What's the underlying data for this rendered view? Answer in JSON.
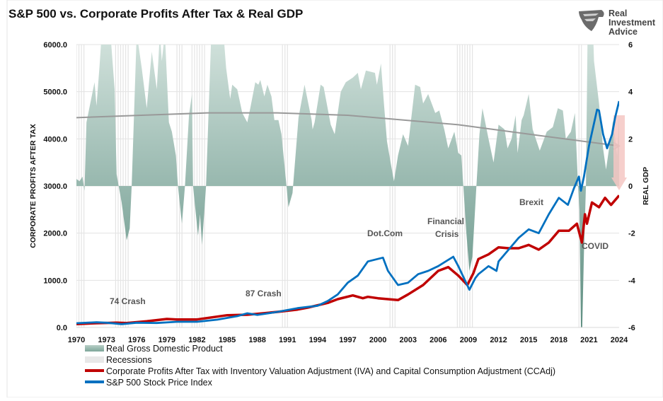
{
  "title": "S&P 500 vs. Corporate Profits After Tax & Real GDP",
  "logo": {
    "lines": [
      "Real",
      "Investment",
      "Advice"
    ]
  },
  "chart_data": {
    "type": "line",
    "title": "S&P 500 vs. Corporate Profits After Tax & Real GDP",
    "xlim": [
      1970,
      2024
    ],
    "x_ticks": [
      "1970",
      "1973",
      "1976",
      "1979",
      "1982",
      "1985",
      "1988",
      "1991",
      "1994",
      "1997",
      "2000",
      "2003",
      "2006",
      "2009",
      "2012",
      "2015",
      "2018",
      "2021",
      "2024"
    ],
    "left_axis": {
      "label": "CORPORATE PROFITS AFTER TAX",
      "ylim": [
        0,
        6000
      ],
      "ticks": [
        "0.0",
        "1000.0",
        "2000.0",
        "3000.0",
        "4000.0",
        "5000.0",
        "6000.0"
      ]
    },
    "right_axis": {
      "label": "REAL GDP",
      "ylim": [
        -6,
        6
      ],
      "ticks": [
        "-6",
        "-4",
        "-2",
        "0",
        "2",
        "4",
        "6"
      ]
    },
    "grid": true,
    "legend_placement": "bottom-left",
    "colors": {
      "gdp_top": "#cfe0da",
      "gdp_bottom": "#5f8f82",
      "recession": "#e4e4e4",
      "profits": "#c00000",
      "sp500": "#0070c0",
      "trend": "#999999",
      "arrow": "#f4c7c3"
    },
    "series": [
      {
        "name": "Real Gross Domestic Product",
        "kind": "area",
        "axis": "right",
        "x": [
          1970,
          1970.3,
          1970.6,
          1970.8,
          1971.0,
          1971.8,
          1972.0,
          1972.3,
          1972.6,
          1973.2,
          1973.8,
          1974.0,
          1974.2,
          1974.5,
          1975.0,
          1975.3,
          1975.5,
          1976.0,
          1976.5,
          1977.0,
          1977.5,
          1978.0,
          1978.3,
          1978.5,
          1978.8,
          1979.2,
          1979.5,
          1979.9,
          1980.1,
          1980.5,
          1980.8,
          1981.2,
          1981.5,
          1981.6,
          1982.1,
          1982.3,
          1982.5,
          1982.9,
          1983.5,
          1984.5,
          1984.9,
          1985.3,
          1985.5,
          1986.0,
          1986.5,
          1987.0,
          1987.3,
          1987.8,
          1988.1,
          1988.3,
          1988.7,
          1989.0,
          1989.4,
          1989.7,
          1990.1,
          1990.4,
          1990.7,
          1990.9,
          1991.1,
          1991.5,
          1992.1,
          1992.7,
          1993.4,
          1993.5,
          1993.7,
          1994.3,
          1994.6,
          1995.3,
          1995.5,
          1995.7,
          1996.3,
          1996.8,
          1997.5,
          1998.0,
          1998.3,
          1998.8,
          1999.7,
          1999.9,
          2000.3,
          2000.6,
          2000.9,
          2001.3,
          2001.6,
          2002.0,
          2002.5,
          2003.0,
          2003.7,
          2004.2,
          2004.5,
          2005.0,
          2005.7,
          2006.1,
          2006.6,
          2007.0,
          2007.6,
          2008.0,
          2008.3,
          2008.5,
          2008.8,
          2009.1,
          2009.4,
          2009.8,
          2010.1,
          2010.4,
          2011.0,
          2011.5,
          2012.0,
          2012.6,
          2012.9,
          2013.3,
          2013.7,
          2013.9,
          2014.3,
          2014.5,
          2015.0,
          2015.4,
          2016.1,
          2016.8,
          2017.4,
          2017.9,
          2018.4,
          2018.7,
          2019.2,
          2019.6,
          2019.9,
          2020.05,
          2020.25,
          2020.5,
          2020.7,
          2021.0,
          2021.5,
          2022.0,
          2022.4,
          2022.7,
          2023.1,
          2023.4,
          2023.8,
          2024.0
        ],
        "values": [
          0.3,
          0.2,
          0.4,
          -0.2,
          2.7,
          4.4,
          3.4,
          5.1,
          7.0,
          7.5,
          4.1,
          0.5,
          0,
          -0.7,
          -2.3,
          -1.8,
          0,
          6.5,
          5.0,
          3.3,
          5.7,
          4.1,
          6.5,
          5.3,
          6.5,
          2.7,
          2.3,
          1.3,
          0,
          -1.6,
          0,
          3.0,
          3.9,
          0,
          -2.1,
          -1.2,
          -2.5,
          0,
          7.5,
          7.2,
          5.0,
          3.7,
          4.3,
          4.1,
          3.1,
          2.7,
          3.3,
          4.4,
          4.3,
          4.5,
          3.8,
          4.3,
          3.8,
          2.8,
          2.8,
          2.2,
          0.9,
          0,
          -0.9,
          -0.3,
          2.9,
          4.3,
          2.8,
          2.4,
          2.7,
          4.3,
          4.2,
          2.6,
          2.4,
          2.2,
          4.0,
          4.4,
          4.6,
          4.8,
          4.1,
          4.9,
          4.8,
          4.3,
          5.2,
          3.5,
          1.9,
          0.9,
          0.2,
          1.3,
          2.2,
          1.7,
          4.3,
          4.2,
          3.5,
          3.9,
          3.1,
          3.2,
          2.4,
          1.6,
          2.3,
          1.4,
          1.3,
          0,
          -2.0,
          -3.6,
          -3.0,
          0,
          2.2,
          3.3,
          2.0,
          1.0,
          2.6,
          2.4,
          1.6,
          2.0,
          3.0,
          1.4,
          2.8,
          3.0,
          3.9,
          2.4,
          1.5,
          2.3,
          2.5,
          3.3,
          3.2,
          2.0,
          2.3,
          3.1,
          0.1,
          -1.0,
          -7.5,
          -2.8,
          0,
          12.0,
          5.3,
          3.5,
          1.6,
          0.7,
          1.9,
          2.8,
          1.3,
          3.0
        ]
      },
      {
        "name": "Recessions",
        "kind": "band",
        "periods": [
          [
            1970.0,
            1970.9
          ],
          [
            1973.9,
            1975.2
          ],
          [
            1980.0,
            1980.5
          ],
          [
            1981.5,
            1982.9
          ],
          [
            1990.5,
            1991.2
          ],
          [
            2001.2,
            2001.9
          ],
          [
            2007.9,
            2009.5
          ],
          [
            2020.0,
            2020.4
          ]
        ]
      },
      {
        "name": "Corporate Profits After Tax with Inventory Valuation Adjustment (IVA) and Capital Consumption Adjustment (CCAdj)",
        "kind": "line",
        "axis": "left",
        "x": [
          1970,
          1972,
          1974,
          1975,
          1977,
          1979,
          1980,
          1982,
          1984,
          1985,
          1987,
          1988,
          1990,
          1992,
          1993,
          1995,
          1996,
          1997.5,
          1998.5,
          1999,
          2000,
          2001,
          2002,
          2003,
          2004.5,
          2006,
          2007,
          2008,
          2008.9,
          2009.5,
          2010,
          2011,
          2012,
          2013,
          2014,
          2015,
          2016,
          2017,
          2018,
          2019,
          2019.8,
          2020.3,
          2020.6,
          2020.8,
          2021.3,
          2022,
          2022.6,
          2023.2,
          2023.8,
          2024
        ],
        "values": [
          70,
          90,
          100,
          95,
          130,
          180,
          170,
          170,
          230,
          260,
          270,
          290,
          330,
          380,
          420,
          520,
          600,
          680,
          620,
          650,
          620,
          600,
          580,
          700,
          900,
          1200,
          1280,
          1100,
          900,
          1150,
          1450,
          1550,
          1700,
          1680,
          1680,
          1750,
          1650,
          1800,
          2050,
          2050,
          2200,
          1800,
          2400,
          2200,
          2650,
          2550,
          2750,
          2600,
          2750,
          2800
        ]
      },
      {
        "name": "S&P 500 Stock Price Index",
        "kind": "line",
        "axis": "left",
        "x": [
          1970,
          1972,
          1973,
          1974.5,
          1976,
          1978,
          1980,
          1982,
          1984,
          1986,
          1987,
          1988,
          1990,
          1992,
          1994,
          1995,
          1996,
          1997,
          1998,
          1999,
          2000.5,
          2001,
          2002,
          2003,
          2004,
          2005,
          2006,
          2007.5,
          2008,
          2009.1,
          2009.7,
          2010,
          2011,
          2011.8,
          2012,
          2013,
          2014,
          2015,
          2016,
          2017,
          2018,
          2018.9,
          2019.5,
          2020.0,
          2020.2,
          2020.5,
          2021,
          2021.8,
          2022.0,
          2022.4,
          2022.8,
          2023.3,
          2023.6,
          2024
        ],
        "values": [
          90,
          110,
          100,
          70,
          100,
          95,
          120,
          120,
          165,
          240,
          300,
          265,
          330,
          410,
          460,
          560,
          700,
          950,
          1100,
          1400,
          1480,
          1200,
          900,
          950,
          1130,
          1200,
          1300,
          1500,
          1300,
          800,
          1050,
          1130,
          1300,
          1200,
          1400,
          1650,
          1900,
          2080,
          2000,
          2400,
          2750,
          2600,
          2950,
          3200,
          2900,
          3200,
          3850,
          4620,
          4600,
          4100,
          3800,
          4100,
          4450,
          4800
        ]
      },
      {
        "name": "",
        "kind": "trend",
        "axis": "right",
        "x": [
          1970,
          1983,
          1990,
          1997,
          2008,
          2015,
          2024
        ],
        "values": [
          2.9,
          3.1,
          3.1,
          3.0,
          2.6,
          2.2,
          1.7
        ]
      }
    ],
    "arrow": {
      "x": 2024,
      "from": 3.0,
      "to": 0
    },
    "annotations": [
      "74 Crash",
      "87 Crash",
      "Dot.Com",
      "Financial",
      "Crisis",
      "Brexit",
      "COVID"
    ]
  },
  "legend": [
    {
      "label": "Real Gross Domestic Product"
    },
    {
      "label": "Recessions"
    },
    {
      "label": "Corporate Profits After Tax with Inventory Valuation Adjustment (IVA) and Capital Consumption Adjustment (CCAdj)"
    },
    {
      "label": "S&P 500 Stock Price Index"
    }
  ]
}
